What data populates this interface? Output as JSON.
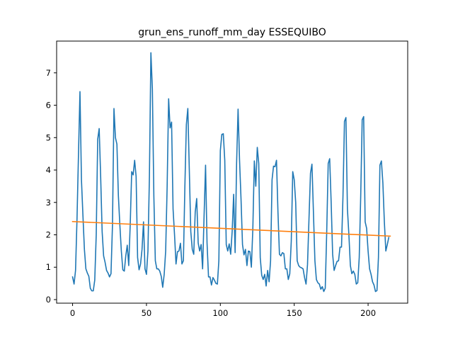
{
  "chart_data": {
    "type": "line",
    "title": "grun_ens_runoff_mm_day ESSEQUIBO",
    "xlabel": "",
    "ylabel": "",
    "xlim": [
      -10.8,
      226.8
    ],
    "ylim": [
      -0.11,
      7.98
    ],
    "xticks": [
      0,
      50,
      100,
      150,
      200
    ],
    "yticks": [
      0,
      1,
      2,
      3,
      4,
      5,
      6,
      7
    ],
    "grid": false,
    "legend": "none",
    "series": [
      {
        "color": "#1f77b4",
        "x_start": 0,
        "x_step": 1,
        "values": [
          0.7,
          0.48,
          0.9,
          2.5,
          4.5,
          6.42,
          3.7,
          2.6,
          1.55,
          0.95,
          0.82,
          0.72,
          0.35,
          0.27,
          0.27,
          0.6,
          2.0,
          4.95,
          5.28,
          3.8,
          2.1,
          1.35,
          1.15,
          0.9,
          0.82,
          0.7,
          0.8,
          2.3,
          5.9,
          5.0,
          4.8,
          3.2,
          2.3,
          1.5,
          0.92,
          0.88,
          1.35,
          1.68,
          1.05,
          2.3,
          3.95,
          3.85,
          4.3,
          3.8,
          1.3,
          0.92,
          1.1,
          1.55,
          2.4,
          0.95,
          0.78,
          1.5,
          3.8,
          7.62,
          6.5,
          3.2,
          1.2,
          0.95,
          0.95,
          0.88,
          0.72,
          0.38,
          0.78,
          1.5,
          3.5,
          6.2,
          5.3,
          5.48,
          2.8,
          2.0,
          1.1,
          1.48,
          1.5,
          1.74,
          1.1,
          1.2,
          3.5,
          5.4,
          5.9,
          4.0,
          2.1,
          1.55,
          1.4,
          2.7,
          3.12,
          1.75,
          1.5,
          1.7,
          0.95,
          2.6,
          4.15,
          1.75,
          0.7,
          0.7,
          0.45,
          0.68,
          0.6,
          0.5,
          0.48,
          1.2,
          4.6,
          5.1,
          5.12,
          4.3,
          1.7,
          1.5,
          1.72,
          1.4,
          2.1,
          3.25,
          1.45,
          4.2,
          5.88,
          4.3,
          3.1,
          1.7,
          1.38,
          1.55,
          1.05,
          1.5,
          1.48,
          1.0,
          2.2,
          4.28,
          3.5,
          4.7,
          4.2,
          1.3,
          0.75,
          0.62,
          0.78,
          0.42,
          0.9,
          0.55,
          1.2,
          3.7,
          4.12,
          4.1,
          4.3,
          2.7,
          1.4,
          1.35,
          1.45,
          1.42,
          0.95,
          0.95,
          0.62,
          0.8,
          1.8,
          3.95,
          3.7,
          3.0,
          1.2,
          1.05,
          1.0,
          0.98,
          0.95,
          0.68,
          0.48,
          1.08,
          2.5,
          3.9,
          4.18,
          2.7,
          1.2,
          0.62,
          0.52,
          0.48,
          0.32,
          0.4,
          0.25,
          0.35,
          2.1,
          4.2,
          4.35,
          3.0,
          1.4,
          0.9,
          1.05,
          1.18,
          1.2,
          1.62,
          1.62,
          3.2,
          5.5,
          5.62,
          2.8,
          2.0,
          1.05,
          0.8,
          0.88,
          0.78,
          0.48,
          0.52,
          1.3,
          3.2,
          5.55,
          5.65,
          2.4,
          2.2,
          1.5,
          0.95,
          0.78,
          0.55,
          0.45,
          0.25,
          0.28,
          1.3,
          4.15,
          4.28,
          3.6,
          2.4,
          1.5,
          1.7,
          1.92
        ]
      },
      {
        "color": "#ff7f0e",
        "x": [
          0,
          215
        ],
        "values": [
          2.41,
          1.96
        ]
      }
    ]
  }
}
